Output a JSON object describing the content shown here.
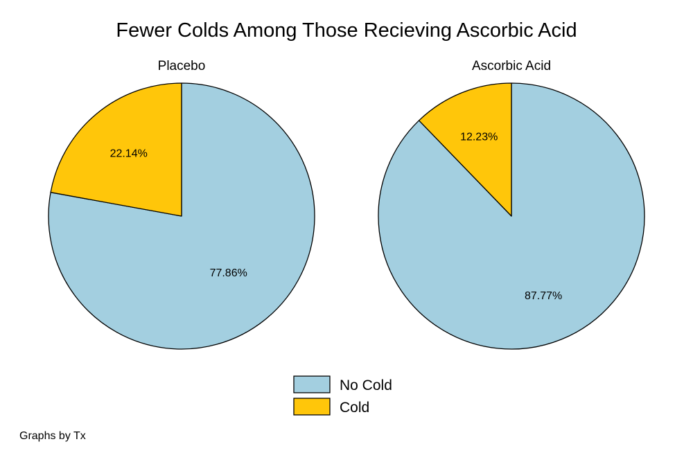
{
  "chart_data": {
    "type": "pie",
    "title": "Fewer Colds Among Those Recieving Ascorbic Acid",
    "legend": {
      "placement": "bottom",
      "entries": [
        {
          "label": "No Cold",
          "color": "#a3cfe0"
        },
        {
          "label": "Cold",
          "color": "#ffc60a"
        }
      ]
    },
    "panels": [
      {
        "name": "Placebo",
        "slices": [
          {
            "label": "No Cold",
            "value": 77.86,
            "display": "77.86%",
            "color": "#a3cfe0"
          },
          {
            "label": "Cold",
            "value": 22.14,
            "display": "22.14%",
            "color": "#ffc60a"
          }
        ]
      },
      {
        "name": "Ascorbic Acid",
        "slices": [
          {
            "label": "No Cold",
            "value": 87.77,
            "display": "87.77%",
            "color": "#a3cfe0"
          },
          {
            "label": "Cold",
            "value": 12.23,
            "display": "12.23%",
            "color": "#ffc60a"
          }
        ]
      }
    ],
    "note": "Graphs by Tx"
  }
}
